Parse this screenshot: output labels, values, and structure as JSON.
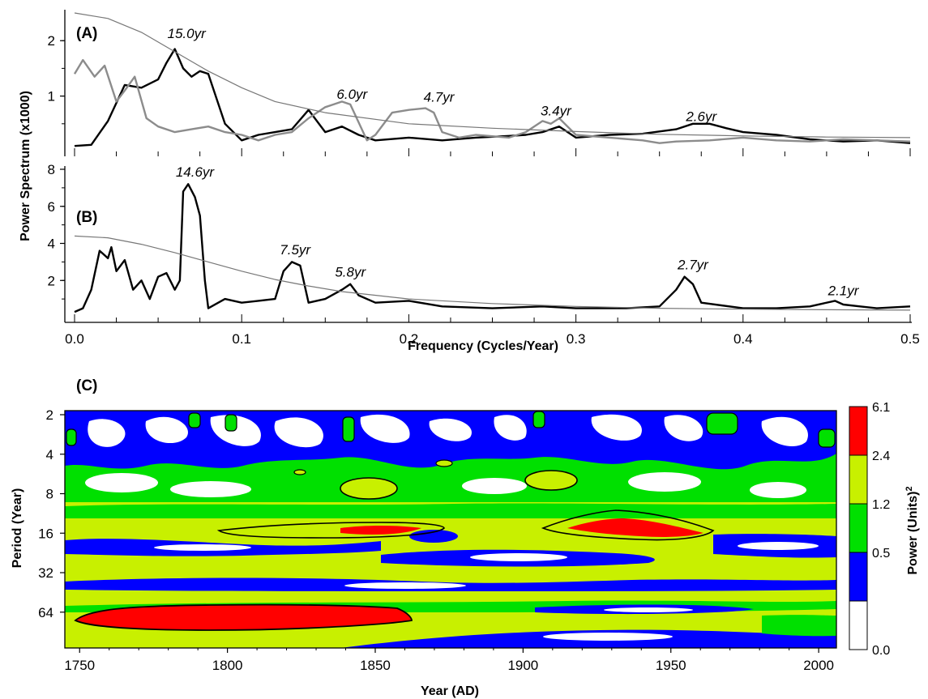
{
  "chart_data": [
    {
      "panel": "(A)",
      "type": "line",
      "ylabel": "Power Spectrum (x1000)",
      "xlim": [
        0,
        0.5
      ],
      "ylim": [
        0,
        2.5
      ],
      "yticks": [
        1,
        2
      ],
      "series": [
        {
          "color": "#000000",
          "points": [
            [
              0.0,
              0.1
            ],
            [
              0.01,
              0.12
            ],
            [
              0.02,
              0.55
            ],
            [
              0.03,
              1.2
            ],
            [
              0.04,
              1.15
            ],
            [
              0.05,
              1.3
            ],
            [
              0.055,
              1.6
            ],
            [
              0.06,
              1.85
            ],
            [
              0.065,
              1.5
            ],
            [
              0.07,
              1.35
            ],
            [
              0.075,
              1.45
            ],
            [
              0.08,
              1.4
            ],
            [
              0.09,
              0.5
            ],
            [
              0.1,
              0.2
            ],
            [
              0.11,
              0.3
            ],
            [
              0.12,
              0.35
            ],
            [
              0.13,
              0.4
            ],
            [
              0.14,
              0.75
            ],
            [
              0.15,
              0.35
            ],
            [
              0.16,
              0.45
            ],
            [
              0.17,
              0.3
            ],
            [
              0.18,
              0.2
            ],
            [
              0.2,
              0.25
            ],
            [
              0.22,
              0.2
            ],
            [
              0.24,
              0.25
            ],
            [
              0.26,
              0.28
            ],
            [
              0.27,
              0.3
            ],
            [
              0.28,
              0.35
            ],
            [
              0.29,
              0.45
            ],
            [
              0.3,
              0.25
            ],
            [
              0.32,
              0.3
            ],
            [
              0.34,
              0.32
            ],
            [
              0.36,
              0.4
            ],
            [
              0.37,
              0.5
            ],
            [
              0.38,
              0.5
            ],
            [
              0.39,
              0.42
            ],
            [
              0.4,
              0.35
            ],
            [
              0.42,
              0.3
            ],
            [
              0.44,
              0.22
            ],
            [
              0.46,
              0.18
            ],
            [
              0.48,
              0.2
            ],
            [
              0.5,
              0.15
            ]
          ]
        },
        {
          "color": "#8c8c8c",
          "points": [
            [
              0.0,
              1.4
            ],
            [
              0.005,
              1.65
            ],
            [
              0.012,
              1.35
            ],
            [
              0.018,
              1.55
            ],
            [
              0.025,
              0.9
            ],
            [
              0.03,
              1.1
            ],
            [
              0.036,
              1.35
            ],
            [
              0.043,
              0.6
            ],
            [
              0.05,
              0.45
            ],
            [
              0.06,
              0.35
            ],
            [
              0.07,
              0.4
            ],
            [
              0.08,
              0.45
            ],
            [
              0.09,
              0.35
            ],
            [
              0.1,
              0.3
            ],
            [
              0.11,
              0.2
            ],
            [
              0.12,
              0.3
            ],
            [
              0.13,
              0.35
            ],
            [
              0.14,
              0.6
            ],
            [
              0.15,
              0.8
            ],
            [
              0.155,
              0.85
            ],
            [
              0.16,
              0.9
            ],
            [
              0.165,
              0.85
            ],
            [
              0.175,
              0.2
            ],
            [
              0.18,
              0.3
            ],
            [
              0.19,
              0.7
            ],
            [
              0.2,
              0.75
            ],
            [
              0.21,
              0.78
            ],
            [
              0.215,
              0.7
            ],
            [
              0.22,
              0.35
            ],
            [
              0.23,
              0.25
            ],
            [
              0.24,
              0.3
            ],
            [
              0.26,
              0.25
            ],
            [
              0.27,
              0.35
            ],
            [
              0.28,
              0.55
            ],
            [
              0.285,
              0.5
            ],
            [
              0.29,
              0.6
            ],
            [
              0.3,
              0.3
            ],
            [
              0.32,
              0.25
            ],
            [
              0.34,
              0.2
            ],
            [
              0.35,
              0.15
            ],
            [
              0.36,
              0.18
            ],
            [
              0.38,
              0.2
            ],
            [
              0.4,
              0.25
            ],
            [
              0.42,
              0.2
            ],
            [
              0.44,
              0.18
            ],
            [
              0.46,
              0.22
            ],
            [
              0.48,
              0.2
            ],
            [
              0.5,
              0.18
            ]
          ]
        },
        {
          "name": "",
          "color": "#777777",
          "points": [
            [
              0.0,
              2.5
            ],
            [
              0.02,
              2.4
            ],
            [
              0.04,
              2.15
            ],
            [
              0.06,
              1.8
            ],
            [
              0.08,
              1.45
            ],
            [
              0.1,
              1.15
            ],
            [
              0.12,
              0.9
            ],
            [
              0.15,
              0.7
            ],
            [
              0.2,
              0.5
            ],
            [
              0.25,
              0.42
            ],
            [
              0.3,
              0.36
            ],
            [
              0.35,
              0.31
            ],
            [
              0.4,
              0.28
            ],
            [
              0.45,
              0.26
            ],
            [
              0.5,
              0.25
            ]
          ]
        }
      ],
      "annotations": [
        {
          "text": "15.0yr",
          "x": 0.067,
          "y": 2.05
        },
        {
          "text": "6.0yr",
          "x": 0.166,
          "y": 0.95
        },
        {
          "text": "4.7yr",
          "x": 0.218,
          "y": 0.9
        },
        {
          "text": "3.4yr",
          "x": 0.288,
          "y": 0.65
        },
        {
          "text": "2.6yr",
          "x": 0.375,
          "y": 0.55
        }
      ]
    },
    {
      "panel": "(B)",
      "type": "line",
      "xlabel": "Frequency (Cycles/Year)",
      "xlim": [
        0,
        0.5
      ],
      "ylim": [
        0,
        8
      ],
      "xticks": [
        "0.0",
        "0.1",
        "0.2",
        "0.3",
        "0.4",
        "0.5"
      ],
      "yticks": [
        2,
        4,
        6,
        8
      ],
      "series": [
        {
          "color": "#000000",
          "points": [
            [
              0.0,
              0.3
            ],
            [
              0.005,
              0.5
            ],
            [
              0.01,
              1.5
            ],
            [
              0.015,
              3.6
            ],
            [
              0.02,
              3.2
            ],
            [
              0.022,
              3.8
            ],
            [
              0.025,
              2.5
            ],
            [
              0.03,
              3.1
            ],
            [
              0.035,
              1.5
            ],
            [
              0.04,
              2.0
            ],
            [
              0.045,
              1.0
            ],
            [
              0.05,
              2.2
            ],
            [
              0.055,
              2.4
            ],
            [
              0.06,
              1.5
            ],
            [
              0.063,
              2.0
            ],
            [
              0.065,
              6.8
            ],
            [
              0.068,
              7.2
            ],
            [
              0.072,
              6.5
            ],
            [
              0.075,
              5.5
            ],
            [
              0.078,
              2.0
            ],
            [
              0.08,
              0.5
            ],
            [
              0.09,
              1.0
            ],
            [
              0.1,
              0.8
            ],
            [
              0.11,
              0.9
            ],
            [
              0.12,
              1.0
            ],
            [
              0.125,
              2.5
            ],
            [
              0.13,
              3.0
            ],
            [
              0.135,
              2.8
            ],
            [
              0.14,
              0.8
            ],
            [
              0.15,
              1.0
            ],
            [
              0.16,
              1.5
            ],
            [
              0.165,
              1.8
            ],
            [
              0.17,
              1.2
            ],
            [
              0.18,
              0.8
            ],
            [
              0.2,
              0.9
            ],
            [
              0.22,
              0.6
            ],
            [
              0.25,
              0.5
            ],
            [
              0.28,
              0.6
            ],
            [
              0.3,
              0.5
            ],
            [
              0.33,
              0.5
            ],
            [
              0.35,
              0.6
            ],
            [
              0.36,
              1.5
            ],
            [
              0.365,
              2.2
            ],
            [
              0.37,
              1.8
            ],
            [
              0.375,
              0.8
            ],
            [
              0.4,
              0.5
            ],
            [
              0.42,
              0.5
            ],
            [
              0.44,
              0.6
            ],
            [
              0.455,
              0.9
            ],
            [
              0.46,
              0.7
            ],
            [
              0.47,
              0.6
            ],
            [
              0.48,
              0.5
            ],
            [
              0.5,
              0.6
            ]
          ]
        },
        {
          "name": "",
          "color": "#777777",
          "points": [
            [
              0.0,
              4.4
            ],
            [
              0.02,
              4.3
            ],
            [
              0.04,
              3.95
            ],
            [
              0.06,
              3.5
            ],
            [
              0.08,
              3.0
            ],
            [
              0.1,
              2.5
            ],
            [
              0.12,
              2.05
            ],
            [
              0.14,
              1.7
            ],
            [
              0.16,
              1.4
            ],
            [
              0.2,
              1.0
            ],
            [
              0.25,
              0.75
            ],
            [
              0.3,
              0.6
            ],
            [
              0.35,
              0.5
            ],
            [
              0.4,
              0.45
            ],
            [
              0.45,
              0.42
            ],
            [
              0.5,
              0.4
            ]
          ]
        }
      ],
      "annotations": [
        {
          "text": "14.6yr",
          "x": 0.072,
          "y": 7.6
        },
        {
          "text": "7.5yr",
          "x": 0.132,
          "y": 3.4
        },
        {
          "text": "5.8yr",
          "x": 0.165,
          "y": 2.2
        },
        {
          "text": "2.7yr",
          "x": 0.37,
          "y": 2.6
        },
        {
          "text": "2.1yr",
          "x": 0.46,
          "y": 1.2
        }
      ]
    },
    {
      "panel": "(C)",
      "type": "heatmap",
      "xlabel": "Year (AD)",
      "ylabel": "Period (Year)",
      "xlim": [
        1745,
        2006
      ],
      "xticks": [
        1750,
        1800,
        1850,
        1900,
        1950,
        2000
      ],
      "yticks": [
        2,
        4,
        8,
        16,
        32,
        64
      ],
      "yscale": "log2",
      "colorbar": {
        "label": "Power (Units)",
        "label_superscript": "2",
        "levels": [
          "0.0",
          "0.5",
          "1.2",
          "2.4",
          "6.1"
        ],
        "colors": [
          "#ffffff",
          "#0000ff",
          "#00e000",
          "#c8f000",
          "#ff0000"
        ]
      },
      "regions": [
        {
          "level": 4,
          "year": [
            1750,
            1860
          ],
          "period": 64
        },
        {
          "level": 4,
          "year": [
            1835,
            1870
          ],
          "period": 16
        },
        {
          "level": 4,
          "year": [
            1915,
            1970
          ],
          "period": 16
        },
        {
          "level": 3,
          "year": [
            1835,
            1850
          ],
          "period": 7
        },
        {
          "level": 3,
          "year": [
            1900,
            1915
          ],
          "period": 7
        }
      ]
    }
  ],
  "labels": {
    "panel_a": "(A)",
    "panel_b": "(B)",
    "panel_c": "(C)",
    "power_spectrum": "Power Spectrum (x1000)",
    "frequency": "Frequency (Cycles/Year)",
    "period": "Period (Year)",
    "year": "Year (AD)",
    "power_units": "Power (Units)",
    "power_sup": "2"
  }
}
